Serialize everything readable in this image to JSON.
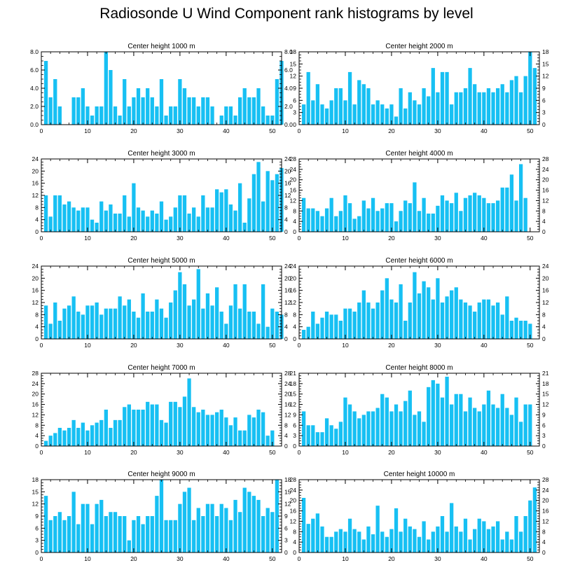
{
  "title": "Radiosonde U Wind Component rank histograms by level",
  "chart_data": [
    {
      "type": "bar",
      "title": "Center height 1000 m",
      "ylim": [
        0,
        8
      ],
      "yticks": [
        "0.0",
        "2.0",
        "4.0",
        "6.0",
        "8.0"
      ],
      "xticks": [
        "0",
        "10",
        "20",
        "30",
        "40",
        "50"
      ],
      "x_start": 1,
      "values": [
        7,
        3,
        5,
        2,
        0,
        0,
        3,
        3,
        4,
        2,
        1,
        2,
        2,
        8,
        6,
        2,
        1,
        5,
        2,
        3,
        4,
        3,
        4,
        3,
        2,
        5,
        1,
        2,
        2,
        5,
        4,
        3,
        3,
        2,
        3,
        3,
        2,
        0,
        1,
        2,
        2,
        1,
        3,
        4,
        3,
        3,
        4,
        2,
        1,
        1,
        5,
        7
      ]
    },
    {
      "type": "bar",
      "title": "Center height 2000 m",
      "ylim": [
        0,
        18
      ],
      "yticks": [
        "0",
        "3",
        "6",
        "9",
        "12",
        "15",
        "18"
      ],
      "xticks": [
        "0",
        "10",
        "20",
        "30",
        "40",
        "50"
      ],
      "x_start": 1,
      "values": [
        5,
        13,
        6,
        10,
        5,
        4,
        6,
        9,
        9,
        6,
        13,
        5,
        11,
        10,
        9,
        5,
        6,
        5,
        4,
        5,
        2,
        9,
        4,
        8,
        6,
        5,
        9,
        7,
        14,
        8,
        13,
        13,
        5,
        8,
        8,
        9,
        14,
        10,
        8,
        8,
        9,
        8,
        9,
        10,
        8,
        11,
        12,
        8,
        12,
        18,
        14
      ]
    },
    {
      "type": "bar",
      "title": "Center height 3000 m",
      "ylim": [
        0,
        24
      ],
      "yticks": [
        "0",
        "4",
        "8",
        "12",
        "16",
        "20",
        "24"
      ],
      "xticks": [
        "0",
        "10",
        "20",
        "30",
        "40",
        "50"
      ],
      "x_start": 1,
      "values": [
        12,
        5,
        12,
        12,
        9,
        10,
        8,
        7,
        8,
        8,
        4,
        3,
        10,
        7,
        9,
        6,
        6,
        12,
        5,
        16,
        8,
        7,
        5,
        7,
        6,
        10,
        4,
        5,
        8,
        12,
        12,
        6,
        8,
        5,
        12,
        8,
        8,
        14,
        13,
        14,
        9,
        7,
        16,
        3,
        11,
        19,
        23,
        10,
        20,
        17,
        19,
        21
      ]
    },
    {
      "type": "bar",
      "title": "Center height 4000 m",
      "ylim": [
        0,
        28
      ],
      "yticks": [
        "0",
        "4",
        "8",
        "12",
        "16",
        "20",
        "24",
        "28"
      ],
      "xticks": [
        "0",
        "10",
        "20",
        "30",
        "40",
        "50"
      ],
      "x_start": 1,
      "values": [
        13,
        9,
        9,
        8,
        6,
        9,
        13,
        6,
        8,
        14,
        11,
        5,
        6,
        12,
        9,
        13,
        8,
        9,
        11,
        11,
        4,
        8,
        12,
        11,
        19,
        8,
        13,
        7,
        7,
        10,
        14,
        12,
        11,
        15,
        8,
        13,
        14,
        15,
        14,
        13,
        11,
        11,
        12,
        17,
        17,
        22,
        12,
        26,
        13
      ]
    },
    {
      "type": "bar",
      "title": "Center height 5000 m",
      "ylim": [
        0,
        24
      ],
      "yticks": [
        "0",
        "4",
        "8",
        "12",
        "16",
        "20",
        "24"
      ],
      "xticks": [
        "0",
        "10",
        "20",
        "30",
        "40",
        "50"
      ],
      "x_start": 1,
      "values": [
        11,
        5,
        12,
        6,
        10,
        11,
        14,
        9,
        8,
        11,
        11,
        12,
        8,
        10,
        10,
        10,
        14,
        11,
        13,
        9,
        7,
        15,
        9,
        9,
        13,
        10,
        7,
        12,
        16,
        22,
        18,
        11,
        13,
        23,
        10,
        15,
        11,
        17,
        9,
        5,
        11,
        18,
        10,
        18,
        9,
        9,
        5,
        18,
        4,
        10,
        9,
        8
      ]
    },
    {
      "type": "bar",
      "title": "Center height 6000 m",
      "ylim": [
        0,
        24
      ],
      "yticks": [
        "0",
        "4",
        "8",
        "12",
        "16",
        "20",
        "24"
      ],
      "xticks": [
        "0",
        "10",
        "20",
        "30",
        "40",
        "50"
      ],
      "x_start": 1,
      "values": [
        3,
        4,
        9,
        5,
        7,
        9,
        8,
        8,
        6,
        10,
        10,
        9,
        12,
        16,
        12,
        10,
        12,
        16,
        20,
        13,
        12,
        18,
        6,
        12,
        22,
        15,
        19,
        17,
        13,
        20,
        12,
        14,
        16,
        17,
        13,
        12,
        11,
        9,
        12,
        13,
        13,
        11,
        12,
        8,
        14,
        6,
        7,
        6,
        6,
        5
      ]
    },
    {
      "type": "bar",
      "title": "Center height 7000 m",
      "ylim": [
        0,
        28
      ],
      "yticks": [
        "0",
        "4",
        "8",
        "12",
        "16",
        "20",
        "24",
        "28"
      ],
      "xticks": [
        "0",
        "10",
        "20",
        "30",
        "40",
        "50"
      ],
      "x_start": 1,
      "values": [
        2,
        4,
        5,
        7,
        6,
        7,
        10,
        7,
        9,
        6,
        8,
        9,
        10,
        14,
        7,
        10,
        10,
        15,
        16,
        14,
        14,
        14,
        17,
        16,
        16,
        10,
        9,
        17,
        17,
        15,
        19,
        26,
        15,
        13,
        14,
        12,
        12,
        13,
        14,
        11,
        8,
        11,
        6,
        6,
        12,
        11,
        14,
        13,
        4,
        6
      ]
    },
    {
      "type": "bar",
      "title": "Center height 8000 m",
      "ylim": [
        0,
        21
      ],
      "yticks": [
        "0",
        "3",
        "6",
        "9",
        "12",
        "15",
        "18",
        "21"
      ],
      "xticks": [
        "0",
        "10",
        "20",
        "30",
        "40",
        "50"
      ],
      "x_start": 1,
      "values": [
        10,
        6,
        6,
        4,
        4,
        8,
        6,
        5,
        7,
        14,
        12,
        10,
        8,
        9,
        10,
        10,
        11,
        15,
        14,
        10,
        12,
        10,
        13,
        16,
        9,
        10,
        7,
        17,
        19,
        18,
        14,
        20,
        12,
        15,
        15,
        10,
        14,
        11,
        10,
        12,
        16,
        12,
        11,
        15,
        11,
        9,
        14,
        7,
        12,
        12
      ]
    },
    {
      "type": "bar",
      "title": "Center height 9000 m",
      "ylim": [
        0,
        18
      ],
      "yticks": [
        "0",
        "3",
        "6",
        "9",
        "12",
        "15",
        "18"
      ],
      "xticks": [
        "0",
        "10",
        "20",
        "30",
        "40",
        "50"
      ],
      "x_start": 1,
      "values": [
        14,
        8,
        9,
        10,
        8,
        9,
        15,
        7,
        12,
        12,
        7,
        12,
        13,
        9,
        10,
        10,
        9,
        9,
        3,
        8,
        9,
        7,
        9,
        9,
        14,
        18,
        8,
        8,
        8,
        12,
        15,
        16,
        8,
        11,
        9,
        12,
        12,
        9,
        12,
        11,
        8,
        13,
        10,
        16,
        15,
        14,
        13,
        9,
        11,
        10,
        18
      ]
    },
    {
      "type": "bar",
      "title": "Center height 10000 m",
      "ylim": [
        0,
        28
      ],
      "yticks": [
        "0",
        "4",
        "8",
        "12",
        "16",
        "20",
        "24",
        "28"
      ],
      "xticks": [
        "0",
        "10",
        "20",
        "30",
        "40",
        "50"
      ],
      "x_start": 1,
      "values": [
        21,
        11,
        13,
        15,
        10,
        6,
        6,
        8,
        9,
        8,
        13,
        9,
        8,
        5,
        10,
        7,
        18,
        8,
        6,
        9,
        17,
        8,
        13,
        10,
        9,
        6,
        12,
        5,
        8,
        10,
        14,
        8,
        19,
        10,
        8,
        13,
        5,
        9,
        13,
        12,
        9,
        10,
        12,
        5,
        8,
        5,
        14,
        8,
        14,
        20,
        25
      ]
    }
  ]
}
